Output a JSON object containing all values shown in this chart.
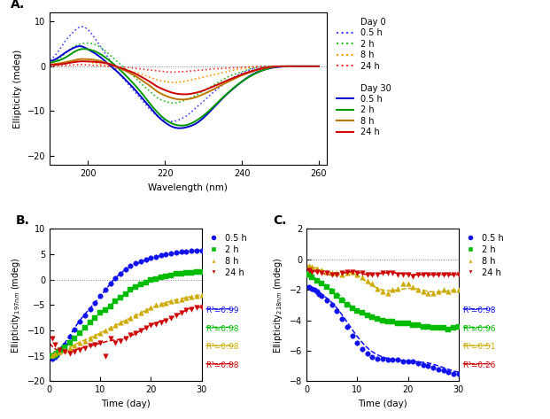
{
  "panel_A": {
    "xlabel": "Wavelength (nm)",
    "ylabel": "Ellipticity (mdeg)",
    "xlim": [
      190,
      262
    ],
    "ylim": [
      -22,
      12
    ],
    "yticks": [
      -20,
      -10,
      0,
      10
    ],
    "xticks": [
      200,
      220,
      240,
      260
    ],
    "day0": {
      "colors": [
        "#4444FF",
        "#22BB22",
        "#FF9900",
        "#FF3333"
      ],
      "labels": [
        "0.5 h",
        "2 h",
        "8 h",
        "24 h"
      ],
      "x": [
        190,
        192,
        194,
        196,
        198,
        200,
        202,
        204,
        206,
        208,
        210,
        212,
        214,
        216,
        218,
        220,
        222,
        224,
        226,
        228,
        230,
        232,
        234,
        236,
        238,
        240,
        242,
        244,
        246,
        248,
        250,
        252,
        254,
        256,
        258,
        260
      ],
      "y_05h": [
        1.5,
        3.0,
        5.5,
        7.5,
        8.8,
        8.2,
        6.0,
        3.5,
        1.0,
        -1.5,
        -3.5,
        -5.5,
        -7.5,
        -9.5,
        -11.0,
        -12.0,
        -12.3,
        -11.8,
        -10.8,
        -9.3,
        -7.8,
        -6.2,
        -4.8,
        -3.5,
        -2.4,
        -1.5,
        -0.8,
        -0.3,
        -0.1,
        0,
        0,
        0,
        0,
        0,
        0,
        0
      ],
      "y_2h": [
        0.8,
        1.5,
        2.8,
        4.2,
        5.0,
        5.2,
        4.8,
        3.8,
        2.3,
        0.8,
        -0.8,
        -2.3,
        -4.0,
        -5.5,
        -7.0,
        -7.8,
        -8.2,
        -7.9,
        -7.3,
        -6.5,
        -5.5,
        -4.5,
        -3.5,
        -2.5,
        -1.8,
        -1.2,
        -0.6,
        -0.2,
        0,
        0,
        0,
        0,
        0,
        0,
        0,
        0
      ],
      "y_8h": [
        0.2,
        0.3,
        0.6,
        1.0,
        1.2,
        1.0,
        0.7,
        0.3,
        -0.1,
        -0.5,
        -0.9,
        -1.3,
        -1.8,
        -2.4,
        -3.0,
        -3.4,
        -3.6,
        -3.5,
        -3.2,
        -2.8,
        -2.4,
        -2.0,
        -1.6,
        -1.2,
        -0.8,
        -0.5,
        -0.3,
        -0.1,
        0,
        0,
        0,
        0,
        0,
        0,
        0,
        0
      ],
      "y_24h": [
        0.1,
        0.1,
        0.2,
        0.3,
        0.4,
        0.3,
        0.2,
        0.1,
        0,
        -0.1,
        -0.2,
        -0.4,
        -0.6,
        -0.8,
        -1.0,
        -1.2,
        -1.3,
        -1.2,
        -1.1,
        -0.9,
        -0.8,
        -0.6,
        -0.5,
        -0.4,
        -0.3,
        -0.2,
        -0.1,
        0,
        0,
        0,
        0,
        0,
        0,
        0,
        0,
        0
      ]
    },
    "day30": {
      "colors": [
        "#0000CC",
        "#009900",
        "#BB7700",
        "#CC0000"
      ],
      "labels": [
        "0.5 h",
        "2 h",
        "8 h",
        "24 h"
      ],
      "y_05h": [
        1.2,
        1.8,
        3.0,
        4.0,
        4.5,
        3.8,
        2.8,
        1.5,
        0,
        -1.5,
        -3.2,
        -5.0,
        -7.0,
        -9.0,
        -11.0,
        -12.5,
        -13.5,
        -13.8,
        -13.5,
        -12.8,
        -11.5,
        -9.8,
        -8.0,
        -6.3,
        -4.8,
        -3.4,
        -2.2,
        -1.3,
        -0.7,
        -0.3,
        -0.1,
        0,
        0,
        0,
        0,
        0
      ],
      "y_2h": [
        0.8,
        1.2,
        1.9,
        3.0,
        3.8,
        3.8,
        3.3,
        2.3,
        1.0,
        -0.5,
        -2.2,
        -4.0,
        -6.0,
        -8.2,
        -10.2,
        -11.8,
        -12.8,
        -13.2,
        -13.0,
        -12.2,
        -11.0,
        -9.5,
        -7.8,
        -6.2,
        -4.7,
        -3.4,
        -2.3,
        -1.4,
        -0.7,
        -0.2,
        0,
        0,
        0,
        0,
        0,
        0
      ],
      "y_8h": [
        0.4,
        0.6,
        0.9,
        1.3,
        1.6,
        1.6,
        1.4,
        1.0,
        0.4,
        -0.3,
        -1.1,
        -2.0,
        -3.1,
        -4.3,
        -5.6,
        -6.5,
        -7.1,
        -7.4,
        -7.3,
        -6.9,
        -6.2,
        -5.4,
        -4.5,
        -3.6,
        -2.8,
        -2.0,
        -1.4,
        -0.8,
        -0.4,
        -0.1,
        0,
        0,
        0,
        0,
        0,
        0
      ],
      "y_24h": [
        0.3,
        0.4,
        0.6,
        0.9,
        1.1,
        1.1,
        1.0,
        0.8,
        0.4,
        -0.2,
        -0.8,
        -1.5,
        -2.4,
        -3.4,
        -4.5,
        -5.3,
        -5.9,
        -6.2,
        -6.2,
        -5.9,
        -5.4,
        -4.7,
        -4.0,
        -3.2,
        -2.5,
        -1.8,
        -1.2,
        -0.7,
        -0.3,
        -0.1,
        0,
        0,
        0,
        0,
        0,
        0
      ]
    },
    "legend_day0_label": "Day 0",
    "legend_day30_label": "Day 30",
    "legend_series_labels": [
      "0.5 h",
      "2 h",
      "8 h",
      "24 h"
    ]
  },
  "panel_B": {
    "xlabel": "Time (day)",
    "xlim": [
      0,
      30
    ],
    "ylim": [
      -20,
      10
    ],
    "yticks": [
      -20,
      -15,
      -10,
      -5,
      0,
      5,
      10
    ],
    "xticks": [
      0,
      10,
      20,
      30
    ],
    "colors": [
      "#1111EE",
      "#00BB00",
      "#CCAA00",
      "#CC0000"
    ],
    "r2": [
      "R²=0.99",
      "R²=0.98",
      "R²=0.98",
      "R²=0.88"
    ],
    "series_labels": [
      "0.5 h",
      "2 h",
      "8 h",
      "24 h"
    ],
    "data_05h_x": [
      0.5,
      1,
      1.5,
      2,
      2.5,
      3,
      4,
      5,
      6,
      7,
      8,
      9,
      10,
      11,
      12,
      13,
      14,
      15,
      16,
      17,
      18,
      19,
      20,
      21,
      22,
      23,
      24,
      25,
      26,
      27,
      28,
      29,
      30
    ],
    "data_05h_y": [
      -15.5,
      -15.2,
      -14.8,
      -14.2,
      -13.5,
      -12.8,
      -11.2,
      -9.8,
      -8.3,
      -7.0,
      -5.8,
      -4.5,
      -3.2,
      -2.0,
      -0.8,
      0.3,
      1.2,
      2.0,
      2.7,
      3.2,
      3.6,
      4.0,
      4.3,
      4.5,
      4.8,
      5.0,
      5.2,
      5.3,
      5.5,
      5.6,
      5.7,
      5.8,
      5.8
    ],
    "data_2h_x": [
      0.5,
      1,
      1.5,
      2,
      2.5,
      3,
      4,
      5,
      6,
      7,
      8,
      9,
      10,
      11,
      12,
      13,
      14,
      15,
      16,
      17,
      18,
      19,
      20,
      21,
      22,
      23,
      24,
      25,
      26,
      27,
      28,
      29,
      30
    ],
    "data_2h_y": [
      -15.0,
      -14.8,
      -14.5,
      -14.2,
      -13.8,
      -13.3,
      -12.5,
      -11.5,
      -10.5,
      -9.5,
      -8.5,
      -7.5,
      -6.5,
      -6.0,
      -5.2,
      -4.3,
      -3.5,
      -2.8,
      -2.0,
      -1.5,
      -1.0,
      -0.5,
      -0.1,
      0.2,
      0.5,
      0.7,
      0.9,
      1.1,
      1.2,
      1.3,
      1.4,
      1.5,
      1.5
    ],
    "data_8h_x": [
      0.5,
      1,
      2,
      3,
      4,
      5,
      6,
      7,
      8,
      9,
      10,
      11,
      12,
      13,
      14,
      15,
      16,
      17,
      18,
      19,
      20,
      21,
      22,
      23,
      24,
      25,
      26,
      27,
      28,
      29,
      30
    ],
    "data_8h_y": [
      -14.8,
      -14.5,
      -14.2,
      -13.8,
      -13.5,
      -13.0,
      -12.5,
      -12.0,
      -11.5,
      -11.0,
      -10.5,
      -10.0,
      -9.5,
      -9.0,
      -8.5,
      -8.0,
      -7.5,
      -7.0,
      -6.5,
      -6.0,
      -5.5,
      -5.0,
      -4.8,
      -4.5,
      -4.2,
      -4.0,
      -3.8,
      -3.5,
      -3.3,
      -3.2,
      -3.0
    ],
    "data_24h_x": [
      0.5,
      1,
      2,
      3,
      4,
      5,
      6,
      7,
      8,
      9,
      10,
      11,
      12,
      13,
      14,
      15,
      16,
      17,
      18,
      19,
      20,
      21,
      22,
      23,
      24,
      25,
      26,
      27,
      28,
      29,
      30
    ],
    "data_24h_y": [
      -11.5,
      -12.8,
      -13.8,
      -14.2,
      -14.5,
      -14.2,
      -13.8,
      -13.5,
      -13.0,
      -12.8,
      -12.5,
      -15.0,
      -11.5,
      -12.5,
      -12.0,
      -11.5,
      -10.8,
      -10.5,
      -10.0,
      -9.5,
      -9.0,
      -8.8,
      -8.5,
      -8.0,
      -7.5,
      -7.0,
      -6.5,
      -6.0,
      -5.8,
      -5.5,
      -5.5
    ],
    "fit_05h_x": [
      0,
      3,
      6,
      9,
      12,
      15,
      18,
      21,
      24,
      27,
      30
    ],
    "fit_05h_y": [
      -15.8,
      -12.5,
      -8.0,
      -4.5,
      -0.8,
      2.0,
      3.5,
      4.5,
      5.0,
      5.5,
      5.8
    ],
    "fit_2h_x": [
      0,
      3,
      6,
      9,
      12,
      15,
      18,
      21,
      24,
      27,
      30
    ],
    "fit_2h_y": [
      -15.2,
      -13.2,
      -10.3,
      -7.5,
      -5.0,
      -2.8,
      -1.0,
      0.2,
      0.9,
      1.3,
      1.5
    ],
    "fit_8h_x": [
      0,
      3,
      6,
      9,
      12,
      15,
      18,
      21,
      24,
      27,
      30
    ],
    "fit_8h_y": [
      -15.0,
      -13.8,
      -12.3,
      -11.0,
      -9.5,
      -8.0,
      -6.5,
      -5.2,
      -4.2,
      -3.5,
      -3.0
    ],
    "fit_24h_x": [
      0,
      3,
      6,
      9,
      12,
      15,
      18,
      21,
      24,
      27,
      30
    ],
    "fit_24h_y": [
      -12.5,
      -14.2,
      -13.5,
      -12.8,
      -12.0,
      -11.5,
      -10.0,
      -8.5,
      -7.5,
      -6.0,
      -5.5
    ]
  },
  "panel_C": {
    "xlabel": "Time (day)",
    "xlim": [
      0,
      30
    ],
    "ylim": [
      -8,
      2
    ],
    "yticks": [
      -8,
      -6,
      -4,
      -2,
      0,
      2
    ],
    "xticks": [
      0,
      10,
      20,
      30
    ],
    "colors": [
      "#1111EE",
      "#00BB00",
      "#CCAA00",
      "#CC0000"
    ],
    "r2": [
      "R²=0.98",
      "R²=0.96",
      "R²=0.51",
      "R²=0.26"
    ],
    "series_labels": [
      "0.5 h",
      "2 h",
      "8 h",
      "24 h"
    ],
    "data_05h_x": [
      0.5,
      1,
      1.5,
      2,
      2.5,
      3,
      4,
      5,
      6,
      7,
      8,
      9,
      10,
      11,
      12,
      13,
      14,
      15,
      16,
      17,
      18,
      19,
      20,
      21,
      22,
      23,
      24,
      25,
      26,
      27,
      28,
      29,
      30
    ],
    "data_05h_y": [
      -1.8,
      -1.9,
      -2.0,
      -2.1,
      -2.3,
      -2.4,
      -2.7,
      -3.0,
      -3.4,
      -3.9,
      -4.4,
      -5.0,
      -5.5,
      -5.9,
      -6.2,
      -6.4,
      -6.5,
      -6.5,
      -6.6,
      -6.6,
      -6.6,
      -6.7,
      -6.7,
      -6.7,
      -6.8,
      -6.9,
      -7.0,
      -7.1,
      -7.2,
      -7.3,
      -7.4,
      -7.5,
      -7.5
    ],
    "data_2h_x": [
      0.5,
      1,
      2,
      3,
      4,
      5,
      6,
      7,
      8,
      9,
      10,
      11,
      12,
      13,
      14,
      15,
      16,
      17,
      18,
      19,
      20,
      21,
      22,
      23,
      24,
      25,
      26,
      27,
      28,
      29,
      30
    ],
    "data_2h_y": [
      -1.0,
      -1.2,
      -1.4,
      -1.6,
      -1.8,
      -2.1,
      -2.4,
      -2.7,
      -3.0,
      -3.2,
      -3.4,
      -3.5,
      -3.7,
      -3.8,
      -3.9,
      -4.0,
      -4.1,
      -4.1,
      -4.2,
      -4.2,
      -4.2,
      -4.3,
      -4.3,
      -4.4,
      -4.4,
      -4.5,
      -4.5,
      -4.5,
      -4.6,
      -4.5,
      -4.4
    ],
    "data_8h_x": [
      0.5,
      1,
      2,
      3,
      4,
      5,
      6,
      7,
      8,
      9,
      10,
      11,
      12,
      13,
      14,
      15,
      16,
      17,
      18,
      19,
      20,
      21,
      22,
      23,
      24,
      25,
      26,
      27,
      28,
      29,
      30
    ],
    "data_8h_y": [
      -0.4,
      -0.5,
      -0.6,
      -0.7,
      -0.8,
      -0.9,
      -0.9,
      -1.0,
      -0.9,
      -0.8,
      -1.0,
      -1.2,
      -1.4,
      -1.6,
      -1.9,
      -2.1,
      -2.2,
      -2.0,
      -1.9,
      -1.6,
      -1.6,
      -1.8,
      -2.0,
      -2.1,
      -2.2,
      -2.2,
      -2.1,
      -2.0,
      -2.1,
      -2.0,
      -2.0
    ],
    "data_24h_x": [
      0.5,
      1,
      2,
      3,
      4,
      5,
      6,
      7,
      8,
      9,
      10,
      11,
      12,
      13,
      14,
      15,
      16,
      17,
      18,
      19,
      20,
      21,
      22,
      23,
      24,
      25,
      26,
      27,
      28,
      29,
      30
    ],
    "data_24h_y": [
      -0.7,
      -0.8,
      -0.8,
      -0.9,
      -0.9,
      -1.0,
      -1.0,
      -0.9,
      -0.8,
      -0.8,
      -0.9,
      -0.9,
      -1.0,
      -1.0,
      -1.0,
      -0.9,
      -0.9,
      -0.9,
      -1.0,
      -1.0,
      -1.0,
      -1.1,
      -1.0,
      -1.0,
      -1.0,
      -1.0,
      -1.0,
      -1.0,
      -1.0,
      -1.0,
      -1.0
    ],
    "fit_05h_x": [
      0,
      3,
      6,
      9,
      12,
      15,
      18,
      21,
      24,
      27,
      30
    ],
    "fit_05h_y": [
      -1.7,
      -2.3,
      -3.2,
      -4.6,
      -5.8,
      -6.4,
      -6.6,
      -6.7,
      -6.8,
      -7.1,
      -7.4
    ],
    "fit_2h_x": [
      0,
      3,
      6,
      9,
      12,
      15,
      18,
      21,
      24,
      27,
      30
    ],
    "fit_2h_y": [
      -0.9,
      -1.5,
      -2.2,
      -3.1,
      -3.7,
      -4.0,
      -4.1,
      -4.3,
      -4.4,
      -4.5,
      -4.5
    ],
    "fit_8h_x": [
      0,
      3,
      6,
      9,
      12,
      15,
      18,
      21,
      24,
      27,
      30
    ],
    "fit_8h_y": [
      -0.4,
      -0.7,
      -0.9,
      -0.9,
      -1.5,
      -2.0,
      -2.0,
      -1.9,
      -2.1,
      -2.1,
      -2.0
    ],
    "fit_24h_x": [
      0,
      3,
      6,
      9,
      12,
      15,
      18,
      21,
      24,
      27,
      30
    ],
    "fit_24h_y": [
      -0.7,
      -0.9,
      -1.0,
      -0.8,
      -1.0,
      -0.9,
      -0.9,
      -1.0,
      -1.0,
      -1.0,
      -1.0
    ]
  }
}
